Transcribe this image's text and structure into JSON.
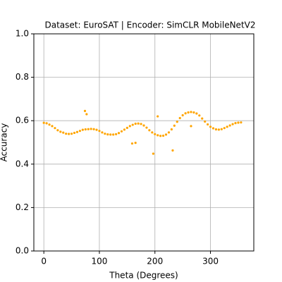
{
  "chart_data": {
    "type": "scatter",
    "title": "Dataset: EuroSAT | Encoder: SimCLR MobileNetV2",
    "xlabel": "Theta (Degrees)",
    "ylabel": "Accuracy",
    "color": "#ffa500",
    "grid": true,
    "xlim": [
      -18,
      378
    ],
    "ylim": [
      0,
      1
    ],
    "xticks": [
      0,
      100,
      200,
      300
    ],
    "yticks": [
      {
        "value": 0,
        "label": "0.0"
      },
      {
        "value": 0.2,
        "label": "0.2"
      },
      {
        "value": 0.4,
        "label": "0.4"
      },
      {
        "value": 0.6,
        "label": "0.6"
      },
      {
        "value": 0.8,
        "label": "0.8"
      },
      {
        "value": 1,
        "label": "1.0"
      }
    ],
    "x": [
      0,
      5,
      10,
      15,
      20,
      25,
      30,
      35,
      40,
      45,
      50,
      55,
      60,
      65,
      70,
      75,
      80,
      85,
      90,
      95,
      100,
      105,
      110,
      115,
      120,
      125,
      130,
      135,
      140,
      145,
      150,
      155,
      160,
      165,
      170,
      175,
      180,
      185,
      190,
      195,
      200,
      205,
      210,
      215,
      220,
      225,
      230,
      235,
      240,
      245,
      250,
      255,
      260,
      265,
      270,
      275,
      280,
      285,
      290,
      295,
      300,
      305,
      310,
      315,
      320,
      325,
      330,
      335,
      340,
      345,
      350,
      355,
      74,
      77,
      159,
      165,
      197,
      205,
      232,
      265
    ],
    "values": [
      0.59,
      0.588,
      0.582,
      0.575,
      0.566,
      0.556,
      0.549,
      0.545,
      0.54,
      0.539,
      0.54,
      0.544,
      0.548,
      0.553,
      0.558,
      0.56,
      0.561,
      0.562,
      0.561,
      0.558,
      0.553,
      0.546,
      0.54,
      0.537,
      0.536,
      0.536,
      0.538,
      0.543,
      0.551,
      0.559,
      0.567,
      0.575,
      0.581,
      0.586,
      0.587,
      0.585,
      0.578,
      0.568,
      0.556,
      0.546,
      0.538,
      0.533,
      0.53,
      0.531,
      0.536,
      0.546,
      0.56,
      0.577,
      0.595,
      0.612,
      0.625,
      0.634,
      0.638,
      0.64,
      0.638,
      0.633,
      0.624,
      0.61,
      0.596,
      0.583,
      0.572,
      0.565,
      0.56,
      0.559,
      0.561,
      0.566,
      0.572,
      0.578,
      0.584,
      0.589,
      0.591,
      0.592,
      0.645,
      0.63,
      0.495,
      0.498,
      0.448,
      0.62,
      0.463,
      0.575
    ]
  }
}
